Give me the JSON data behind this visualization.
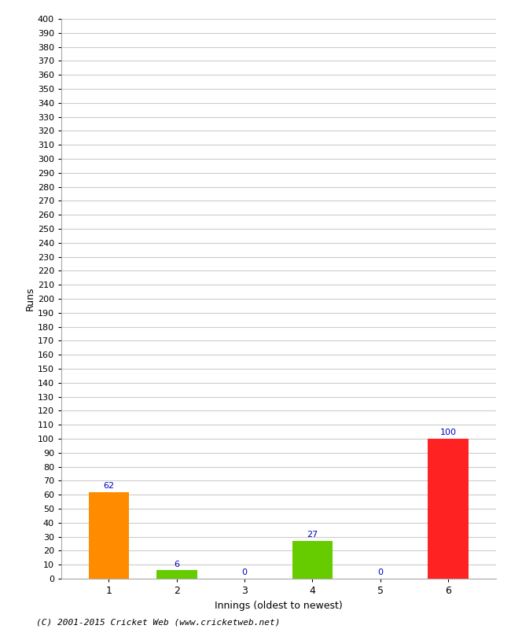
{
  "xlabel": "Innings (oldest to newest)",
  "ylabel": "Runs",
  "categories": [
    "1",
    "2",
    "3",
    "4",
    "5",
    "6"
  ],
  "values": [
    62,
    6,
    0,
    27,
    0,
    100
  ],
  "bar_colors": [
    "#ff8c00",
    "#66cc00",
    "#66cc00",
    "#66cc00",
    "#66cc00",
    "#ff2222"
  ],
  "ylim": [
    0,
    400
  ],
  "background_color": "#ffffff",
  "grid_color": "#cccccc",
  "label_color": "#0000cc",
  "footer_text": "(C) 2001-2015 Cricket Web (www.cricketweb.net)"
}
